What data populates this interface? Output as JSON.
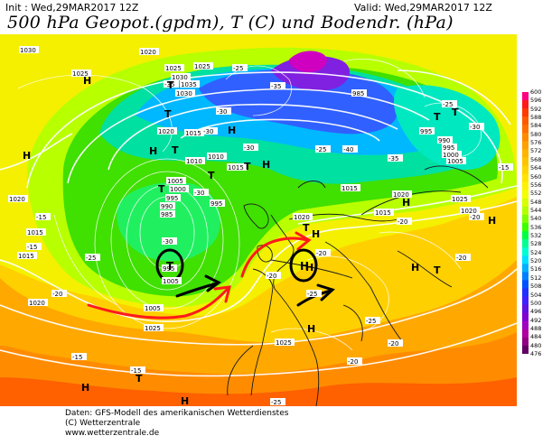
{
  "header": {
    "init": "Init : Wed,29MAR2017 12Z",
    "valid": "Valid: Wed,29MAR2017 12Z",
    "title": "500 hPa Geopot.(gpdm), T (C) und Bodendr. (hPa)"
  },
  "footer": {
    "line1": "Daten: GFS-Modell des amerikanischen Wetterdienstes",
    "line2": "(C) Wetterzentrale",
    "line3": "www.wetterzentrale.de"
  },
  "scale": {
    "ticks": [
      "600",
      "596",
      "592",
      "588",
      "584",
      "580",
      "576",
      "572",
      "568",
      "564",
      "560",
      "556",
      "552",
      "548",
      "544",
      "540",
      "536",
      "532",
      "528",
      "524",
      "520",
      "516",
      "512",
      "508",
      "504",
      "500",
      "496",
      "492",
      "488",
      "484",
      "480",
      "476"
    ],
    "colors": [
      "#ff0080",
      "#ff1a1a",
      "#ff3a00",
      "#ff5a00",
      "#ff7000",
      "#ff8a00",
      "#ffa000",
      "#ffb400",
      "#ffc400",
      "#ffd400",
      "#ffe400",
      "#fff200",
      "#f4ff00",
      "#d8ff00",
      "#b4ff00",
      "#80ff00",
      "#3cff00",
      "#00ff40",
      "#00ff90",
      "#00ffd0",
      "#00e0ff",
      "#00b0ff",
      "#0080ff",
      "#0050ff",
      "#2030ff",
      "#4020ff",
      "#6010e0",
      "#8000d0",
      "#a000c0",
      "#b000a0",
      "#900080",
      "#600060"
    ]
  },
  "map": {
    "pressure_labels": [
      {
        "t": "1030"
      },
      {
        "t": "1020"
      },
      {
        "t": "1025"
      },
      {
        "t": "1025"
      },
      {
        "t": "1030"
      },
      {
        "t": "1035"
      },
      {
        "t": "1025"
      },
      {
        "t": "1030"
      },
      {
        "t": "1015"
      },
      {
        "t": "1020"
      },
      {
        "t": "1010"
      },
      {
        "t": "1005"
      },
      {
        "t": "1000"
      },
      {
        "t": "995"
      },
      {
        "t": "990"
      },
      {
        "t": "985"
      },
      {
        "t": "995"
      },
      {
        "t": "1015"
      },
      {
        "t": "1015"
      },
      {
        "t": "1020"
      },
      {
        "t": "995"
      },
      {
        "t": "1005"
      },
      {
        "t": "1020"
      },
      {
        "t": "1015"
      },
      {
        "t": "1025"
      },
      {
        "t": "1025"
      },
      {
        "t": "1015"
      },
      {
        "t": "1015"
      },
      {
        "t": "1020"
      },
      {
        "t": "1025"
      },
      {
        "t": "1020"
      },
      {
        "t": "1020"
      },
      {
        "t": "985"
      },
      {
        "t": "995"
      },
      {
        "t": "990"
      },
      {
        "t": "995"
      },
      {
        "t": "1000"
      },
      {
        "t": "1005"
      },
      {
        "t": "1005"
      },
      {
        "t": "1010"
      }
    ],
    "temp_labels": [
      "-15",
      "-20",
      "-25",
      "-30",
      "-35",
      "-30",
      "-25",
      "-30",
      "-35",
      "-40",
      "-35",
      "-30",
      "-25",
      "-30",
      "-30",
      "-25",
      "-20",
      "-20",
      "-15",
      "-15",
      "-20",
      "-25",
      "-25",
      "-20",
      "-15",
      "-15",
      "-20",
      "-25",
      "-20",
      "-20"
    ],
    "pressure_centers": [
      {
        "t": "H"
      },
      {
        "t": "H"
      },
      {
        "t": "H"
      },
      {
        "t": "T"
      },
      {
        "t": "T"
      },
      {
        "t": "T"
      },
      {
        "t": "T"
      },
      {
        "t": "H"
      },
      {
        "t": "T"
      },
      {
        "t": "T"
      },
      {
        "t": "H"
      },
      {
        "t": "H"
      },
      {
        "t": "T"
      },
      {
        "t": "H"
      },
      {
        "t": "T"
      },
      {
        "t": "H"
      },
      {
        "t": "T"
      },
      {
        "t": "H"
      },
      {
        "t": "H"
      },
      {
        "t": "T"
      },
      {
        "t": "H"
      },
      {
        "t": "T"
      },
      {
        "t": "H"
      },
      {
        "t": "H"
      }
    ],
    "circled": [
      "T",
      "H"
    ],
    "colors": {
      "red_arrow": "#ff1a1a",
      "black_arrow": "#000000",
      "coast": "#1a1a1a",
      "isohypse": "#ffffff"
    }
  }
}
